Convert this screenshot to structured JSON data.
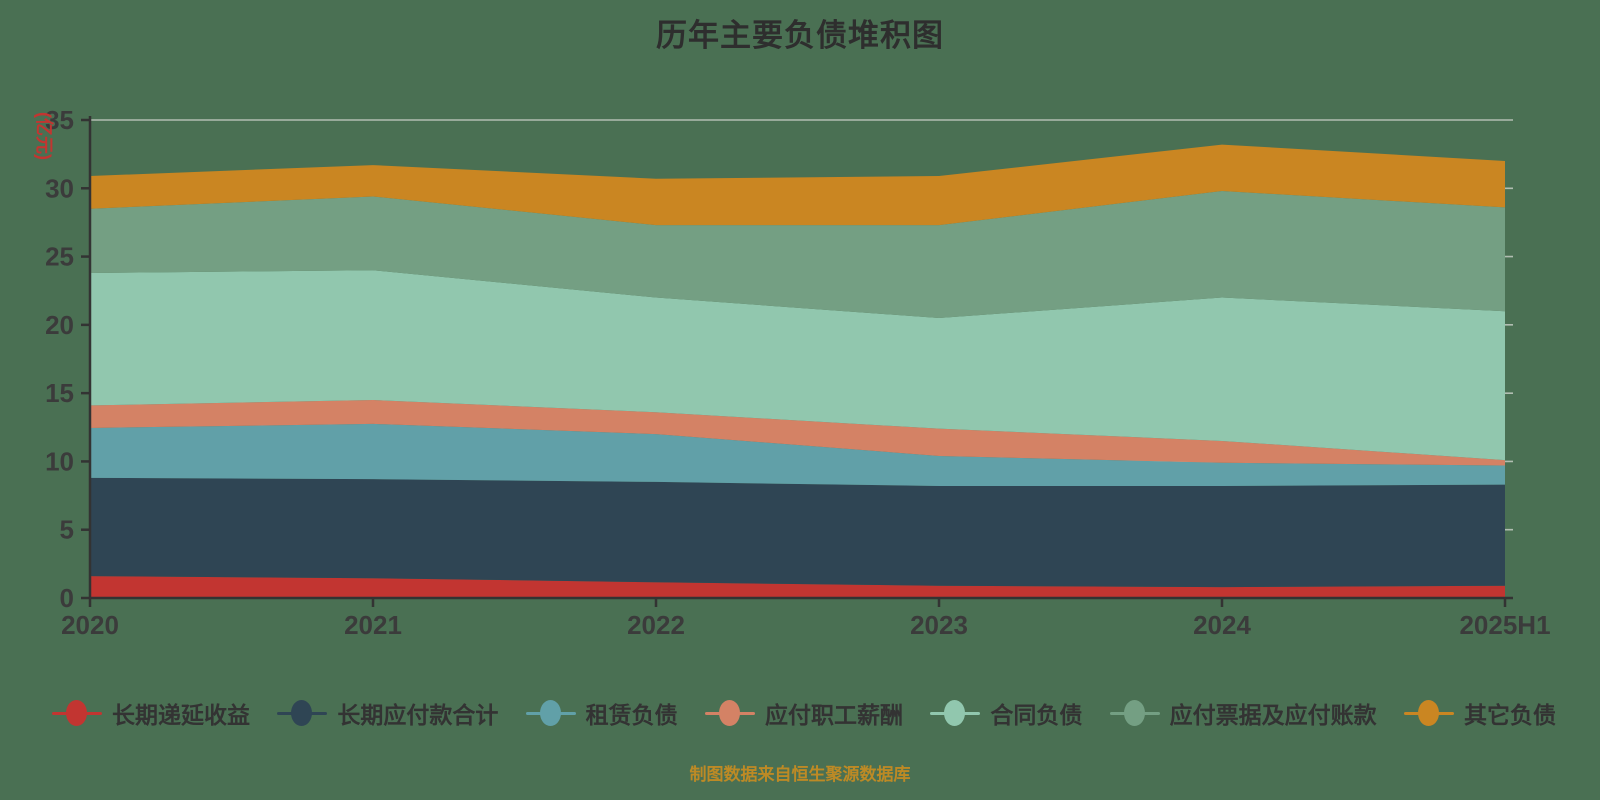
{
  "title": "历年主要负债堆积图",
  "footer": "制图数据来自恒生聚源数据库",
  "colors": {
    "background": "#4a7053",
    "title_text": "#2e2e2e",
    "axis_text": "#3b3b3b",
    "axis_line": "#333333",
    "gridline": "#d4d8d2",
    "unit_label_text": "#c23531",
    "legend_text": "#333333",
    "footer_text": "#bd8a25"
  },
  "chart_data": {
    "type": "area",
    "stacked": true,
    "title": "历年主要负债堆积图",
    "x": [
      "2020",
      "2021",
      "2022",
      "2023",
      "2024",
      "2025H1"
    ],
    "series": [
      {
        "name": "长期递延收益",
        "color": "#c23531",
        "values": [
          1.6,
          1.45,
          1.15,
          0.9,
          0.8,
          0.9
        ]
      },
      {
        "name": "长期应付款合计",
        "color": "#2f4554",
        "values": [
          7.2,
          7.25,
          7.35,
          7.3,
          7.4,
          7.4
        ]
      },
      {
        "name": "租赁负债",
        "color": "#61a0a8",
        "values": [
          3.65,
          4.05,
          3.5,
          2.2,
          1.7,
          1.4
        ]
      },
      {
        "name": "应付职工薪酬",
        "color": "#d48265",
        "values": [
          1.65,
          1.75,
          1.6,
          2.0,
          1.6,
          0.4
        ]
      },
      {
        "name": "合同负债",
        "color": "#91c7ae",
        "values": [
          9.7,
          9.5,
          8.4,
          8.1,
          10.5,
          10.9
        ]
      },
      {
        "name": "应付票据及应付账款",
        "color": "#749f83",
        "values": [
          4.7,
          5.4,
          5.3,
          6.8,
          7.8,
          7.6
        ]
      },
      {
        "name": "其它负债",
        "color": "#ca8622",
        "values": [
          2.4,
          2.3,
          3.4,
          3.6,
          3.4,
          3.4
        ]
      }
    ],
    "totals": [
      30.9,
      31.7,
      30.7,
      30.9,
      33.2,
      32.0
    ],
    "xlabel": "",
    "ylabel": "(亿元)",
    "ylim": [
      0,
      35
    ],
    "yticks": [
      0,
      5,
      10,
      15,
      20,
      25,
      30,
      35
    ],
    "grid": true,
    "legend_position": "bottom"
  }
}
